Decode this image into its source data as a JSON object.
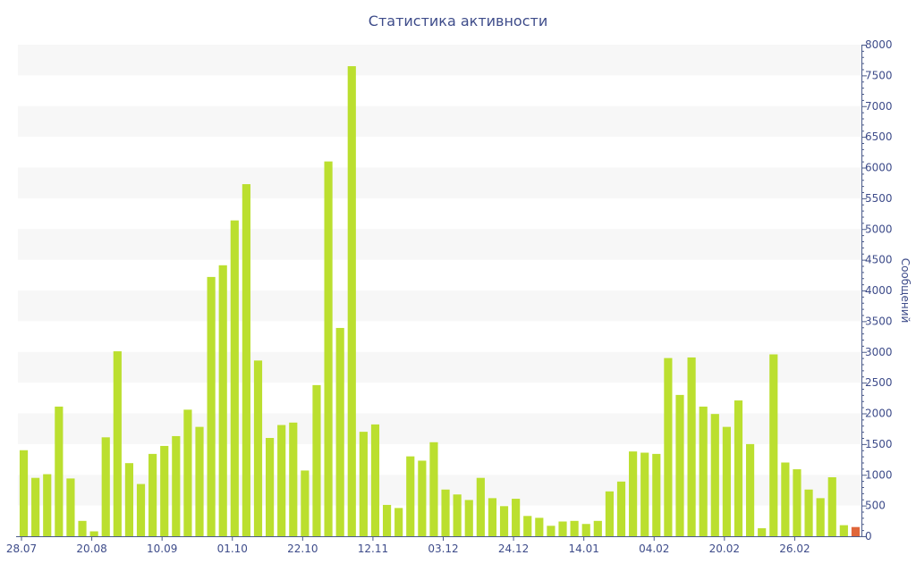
{
  "chart_data": {
    "type": "bar",
    "title": "Статистика активности",
    "ylabel": "Сообщений",
    "xlabel": "",
    "y_axis_side": "right",
    "ylim": [
      0,
      8000
    ],
    "yticks": [
      0,
      500,
      1000,
      1500,
      2000,
      2500,
      3000,
      3500,
      4000,
      4500,
      5000,
      5500,
      6000,
      6500,
      7000,
      7500,
      8000
    ],
    "xtick_labels": [
      "28.07",
      "20.08",
      "10.09",
      "01.10",
      "22.10",
      "12.11",
      "03.12",
      "24.12",
      "14.01",
      "04.02",
      "20.02",
      "26.02"
    ],
    "grid": "horizontal alternating bands",
    "colors": {
      "bar": "#bbdf2f",
      "last_bar": "#e0663a",
      "band": "#f7f7f7",
      "text": "#3e4c8a",
      "axis": "#4a5a8a"
    },
    "values": [
      1400,
      950,
      1010,
      2110,
      940,
      250,
      80,
      1610,
      3010,
      1190,
      850,
      1340,
      1470,
      1630,
      2060,
      1780,
      4220,
      4410,
      5140,
      5730,
      2860,
      1600,
      1810,
      1850,
      1070,
      2460,
      6100,
      3390,
      7650,
      1700,
      1820,
      510,
      460,
      1300,
      1230,
      1530,
      760,
      680,
      590,
      950,
      620,
      490,
      610,
      330,
      300,
      170,
      240,
      250,
      200,
      250,
      730,
      890,
      1380,
      1360,
      1340,
      2900,
      2300,
      2910,
      2110,
      1990,
      1780,
      2210,
      1500,
      130,
      2960,
      1200,
      1090,
      760,
      620,
      960,
      180,
      150
    ]
  }
}
